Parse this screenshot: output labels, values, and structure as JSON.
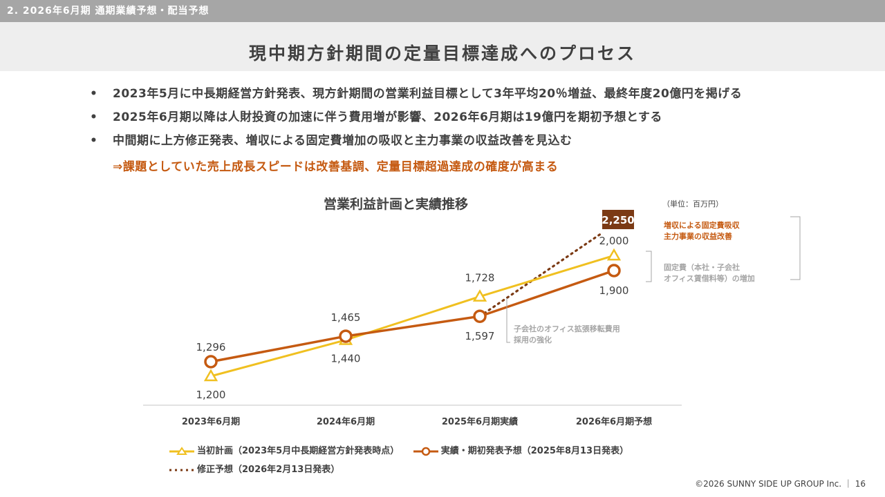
{
  "section": "2. 2026年6月期 通期業績予想・配当予想",
  "title": "現中期方針期間の定量目標達成へのプロセス",
  "bullets": [
    "2023年5月に中長期経営方針発表、現方針期間の営業利益目標として3年平均20％増益、最終年度20億円を掲げる",
    "2025年6月期以降は人財投資の加速に伴う費用増が影響、2026年6月期は19億円を期初予想とする",
    "中間期に上方修正発表、増収による固定費増加の吸収と主力事業の収益改善を見込む"
  ],
  "bullet_mark": "•",
  "conclusion": "⇒課題としていた売上成長スピードは改善基調、定量目標超過達成の確度が高まる",
  "colors": {
    "plan": "#f0c020",
    "actual": "#c55a11",
    "revised": "#7b3a14",
    "accent_text": "#c55a11",
    "gray_text": "#a6a6a6",
    "section_bar": "#a6a6a6"
  },
  "chart_data": {
    "type": "line",
    "title": "営業利益計画と実績推移",
    "unit": "（単位：百万円）",
    "categories": [
      "2023年6月期",
      "2024年6月期",
      "2025年6月期実績",
      "2026年6月期予想"
    ],
    "ylim": [
      1000,
      2300
    ],
    "series": [
      {
        "name": "当初計画（2023年5月中長期経営方針発表時点）",
        "marker": "triangle",
        "values": [
          1200,
          1440,
          1728,
          2000
        ],
        "labels": [
          "1,200",
          "1,440",
          "1,728",
          "2,000"
        ]
      },
      {
        "name": "実績・期初発表予想（2025年8月13日発表）",
        "marker": "circle",
        "values": [
          1296,
          1465,
          1597,
          1900
        ],
        "labels": [
          "1,296",
          "1,465",
          "1,597",
          "1,900"
        ]
      },
      {
        "name": "修正予想（2026年2月13日発表）",
        "marker": "none",
        "style": "dotted",
        "values": [
          null,
          null,
          1597,
          2250
        ],
        "labels": [
          null,
          null,
          null,
          "2,250"
        ]
      }
    ],
    "annotations": {
      "cost_increase": [
        "子会社のオフィス拡張移転費用",
        "採用の強化"
      ],
      "fixed_cost": [
        "固定費（本社・子会社",
        "オフィス賃借料等）の増加"
      ],
      "improvement": [
        "増収による固定費吸収",
        "主力事業の収益改善"
      ]
    }
  },
  "footer": "©2026 SUNNY SIDE UP GROUP Inc. ｜ 16"
}
